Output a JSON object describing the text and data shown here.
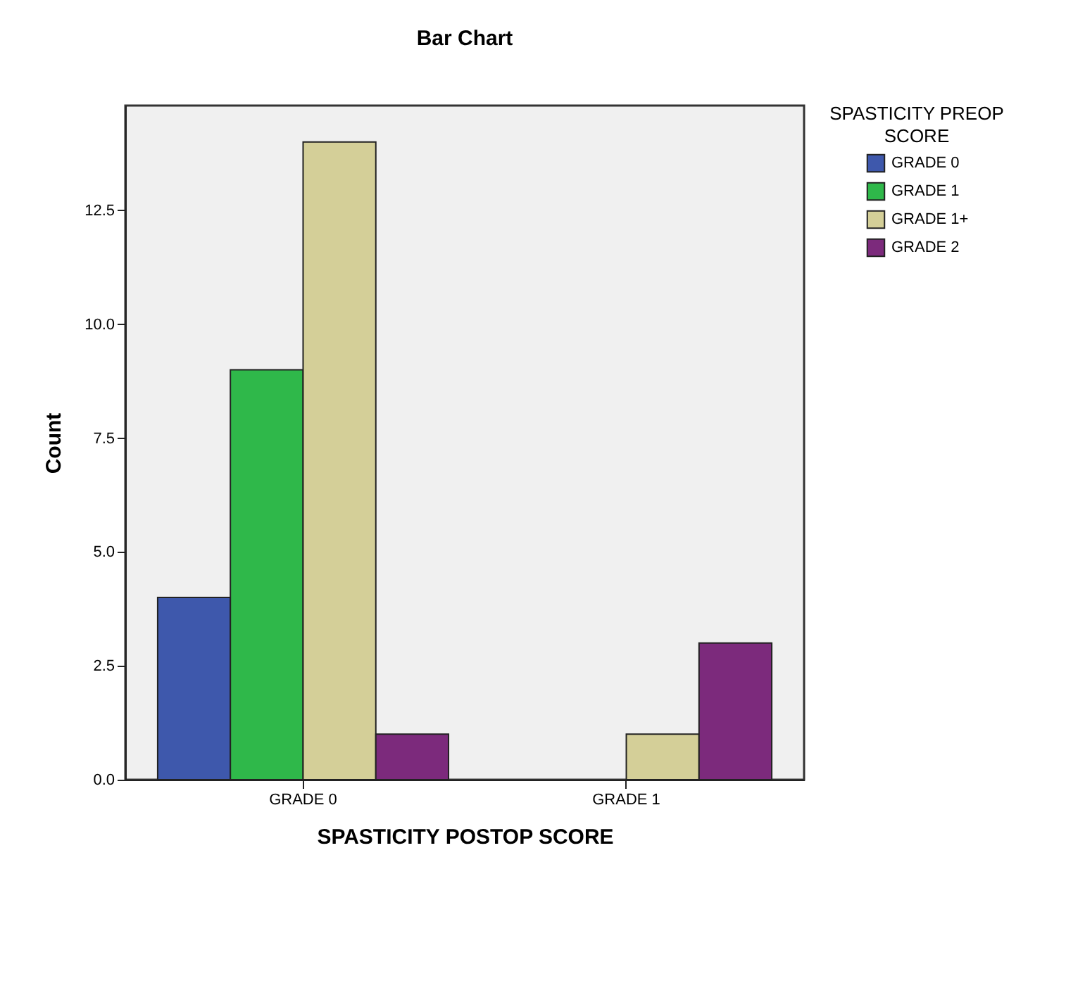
{
  "chart_data": {
    "type": "bar",
    "title": "Bar Chart",
    "xlabel": "SPASTICITY POSTOP SCORE",
    "ylabel": "Count",
    "legend_title": "SPASTICITY PREOP SCORE",
    "categories": [
      "GRADE 0",
      "GRADE 1"
    ],
    "series": [
      {
        "name": "GRADE 0",
        "color": "#3e58ac",
        "values": [
          4,
          null
        ]
      },
      {
        "name": "GRADE 1",
        "color": "#2fb84a",
        "values": [
          9,
          null
        ]
      },
      {
        "name": "GRADE 1+",
        "color": "#d4cf98",
        "values": [
          14,
          1
        ]
      },
      {
        "name": "GRADE 2",
        "color": "#7c2a7c",
        "values": [
          1,
          3
        ]
      }
    ],
    "ylim": [
      0,
      14.8
    ],
    "yticks": [
      {
        "value": 0,
        "label": "0.0"
      },
      {
        "value": 2.5,
        "label": "2.5"
      },
      {
        "value": 5,
        "label": "5.0"
      },
      {
        "value": 7.5,
        "label": "7.5"
      },
      {
        "value": 10,
        "label": "10.0"
      },
      {
        "value": 12.5,
        "label": "12.5"
      }
    ],
    "grid": false,
    "legend": "top right"
  }
}
